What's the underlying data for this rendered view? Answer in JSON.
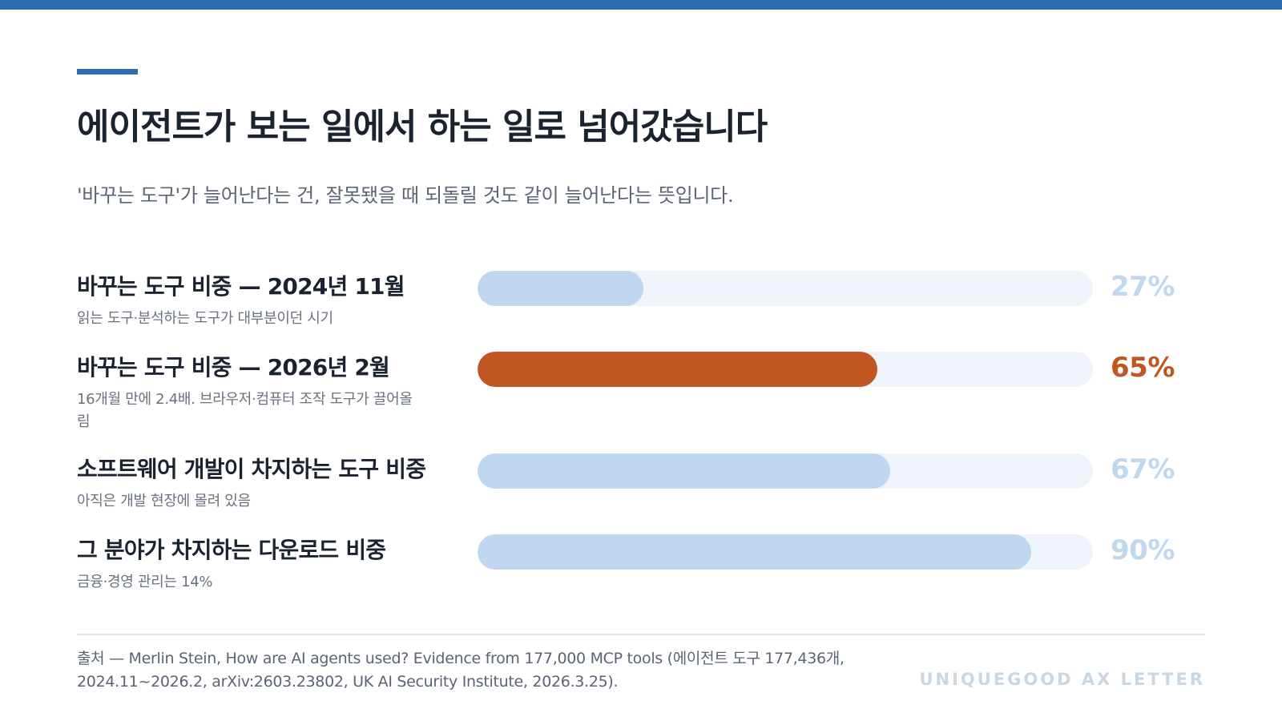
{
  "header": {
    "title": "에이전트가 보는 일에서 하는 일로 넘어갔습니다",
    "subtitle": "'바꾸는 도구'가 늘어난다는 건, 잘못됐을 때 되돌릴 것도 같이 늘어난다는 뜻입니다."
  },
  "colors": {
    "brand_blue": "#2c6cb0",
    "bar_light": "#bfd7ef",
    "bar_highlight": "#c05621",
    "track": "#eff4fa",
    "pct_light": "#bfd7ef"
  },
  "chart_data": {
    "type": "bar",
    "orientation": "horizontal",
    "xlim": [
      0,
      100
    ],
    "grid": false,
    "categories": [
      "바꾸는 도구 비중 — 2024년 11월",
      "바꾸는 도구 비중 — 2026년 2월",
      "소프트웨어 개발이 차지하는 도구 비중",
      "그 분야가 차지하는 다운로드 비중"
    ],
    "values": [
      27,
      65,
      67,
      90
    ],
    "value_labels": [
      "27%",
      "65%",
      "67%",
      "90%"
    ],
    "notes": [
      "읽는 도구·분석하는 도구가 대부분이던 시기",
      "16개월 만에 2.4배. 브라우저·컴퓨터 조작 도구가 끌어올림",
      "아직은 개발 현장에 몰려 있음",
      "금융·경영 관리는 14%"
    ],
    "highlight_index": 1,
    "unit": "%"
  },
  "footer": {
    "source": "출처 — Merlin Stein, How are AI agents used? Evidence from 177,000 MCP tools (에이전트 도구 177,436개, 2024.11~2026.2, arXiv:2603.23802, UK AI Security Institute, 2026.3.25).",
    "brand": "UNIQUEGOOD AX LETTER"
  }
}
